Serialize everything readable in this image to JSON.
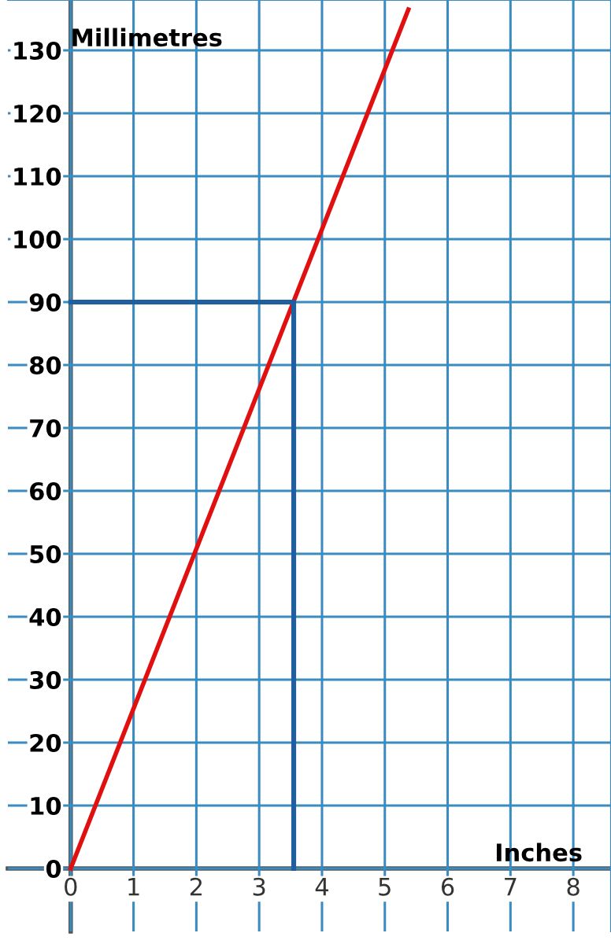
{
  "chart_data": {
    "type": "line",
    "xlabel": "Inches",
    "ylabel": "Millimetres",
    "series": [
      {
        "x": [
          0,
          5.375
        ],
        "values": [
          0,
          136.5
        ],
        "color": "#e01010"
      },
      {
        "x": [
          0,
          3.55,
          3.55
        ],
        "values": [
          90,
          90,
          0
        ],
        "color": "#1f5f9f"
      }
    ],
    "xlim": [
      -1,
      8.6
    ],
    "ylim": [
      -10,
      138
    ],
    "xticks": [
      0,
      1,
      2,
      3,
      4,
      5,
      6,
      7,
      8
    ],
    "yticks": [
      0,
      10,
      20,
      30,
      40,
      50,
      60,
      70,
      80,
      90,
      100,
      110,
      120,
      130
    ],
    "grid": true,
    "marker": "none",
    "line_style": "solid",
    "legend": false
  }
}
